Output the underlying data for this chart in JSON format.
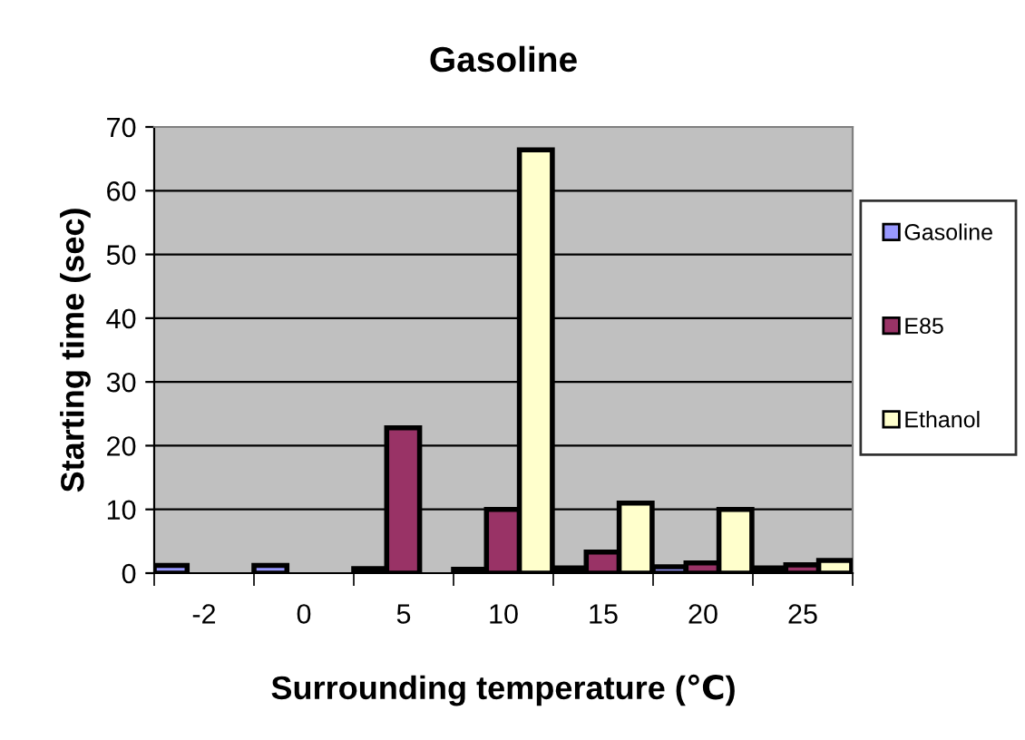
{
  "chart_data": {
    "type": "bar",
    "title": "Gasoline",
    "xlabel": "Surrounding temperature (℃)",
    "ylabel": "Starting time (sec)",
    "categories": [
      "-2",
      "0",
      "5",
      "10",
      "15",
      "20",
      "25"
    ],
    "series": [
      {
        "name": "Gasoline",
        "color": "#9999ff",
        "values": [
          1.2,
          1.2,
          0.7,
          0.6,
          0.8,
          1.0,
          0.8
        ]
      },
      {
        "name": "E85",
        "color": "#993366",
        "values": [
          null,
          null,
          22.8,
          10,
          3.3,
          1.6,
          1.3
        ]
      },
      {
        "name": "Ethanol",
        "color": "#ffffcc",
        "values": [
          null,
          null,
          null,
          66.4,
          11,
          10,
          2.0
        ]
      }
    ],
    "ylim": [
      0,
      70
    ],
    "yticks": [
      0,
      10,
      20,
      30,
      40,
      50,
      60,
      70
    ],
    "grid": "y",
    "legend": "right"
  }
}
